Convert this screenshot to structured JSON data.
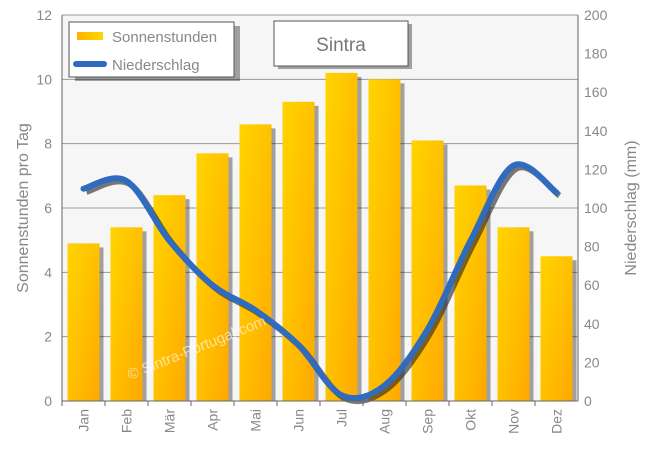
{
  "chart_data": {
    "type": "bar+line",
    "title": "Sintra",
    "categories": [
      "Jan",
      "Feb",
      "Mär",
      "Apr",
      "Mai",
      "Jun",
      "Jul",
      "Aug",
      "Sep",
      "Okt",
      "Nov",
      "Dez"
    ],
    "series": [
      {
        "name": "Sonnenstunden",
        "type": "bar",
        "axis": "left",
        "color": "#ffc000",
        "values": [
          4.9,
          5.4,
          6.4,
          7.7,
          8.6,
          9.3,
          10.2,
          10.0,
          8.1,
          6.7,
          5.4,
          4.5
        ]
      },
      {
        "name": "Niederschlag",
        "type": "line",
        "axis": "right",
        "color": "#2f6bbf",
        "values": [
          110,
          114,
          83,
          60,
          47,
          29,
          3,
          8,
          37,
          83,
          122,
          108
        ]
      }
    ],
    "ylabel": "Sonnenstunden pro Tag",
    "y2label": "Niederschlag (mm)",
    "ylim": [
      0,
      12
    ],
    "y2lim": [
      0,
      200
    ],
    "yticks": [
      0,
      2,
      4,
      6,
      8,
      10,
      12
    ],
    "y2ticks": [
      0,
      20,
      40,
      60,
      80,
      100,
      120,
      140,
      160,
      180,
      200
    ],
    "grid": true,
    "legend": "top-left",
    "watermark": "© Sintra-Portugal.com"
  }
}
